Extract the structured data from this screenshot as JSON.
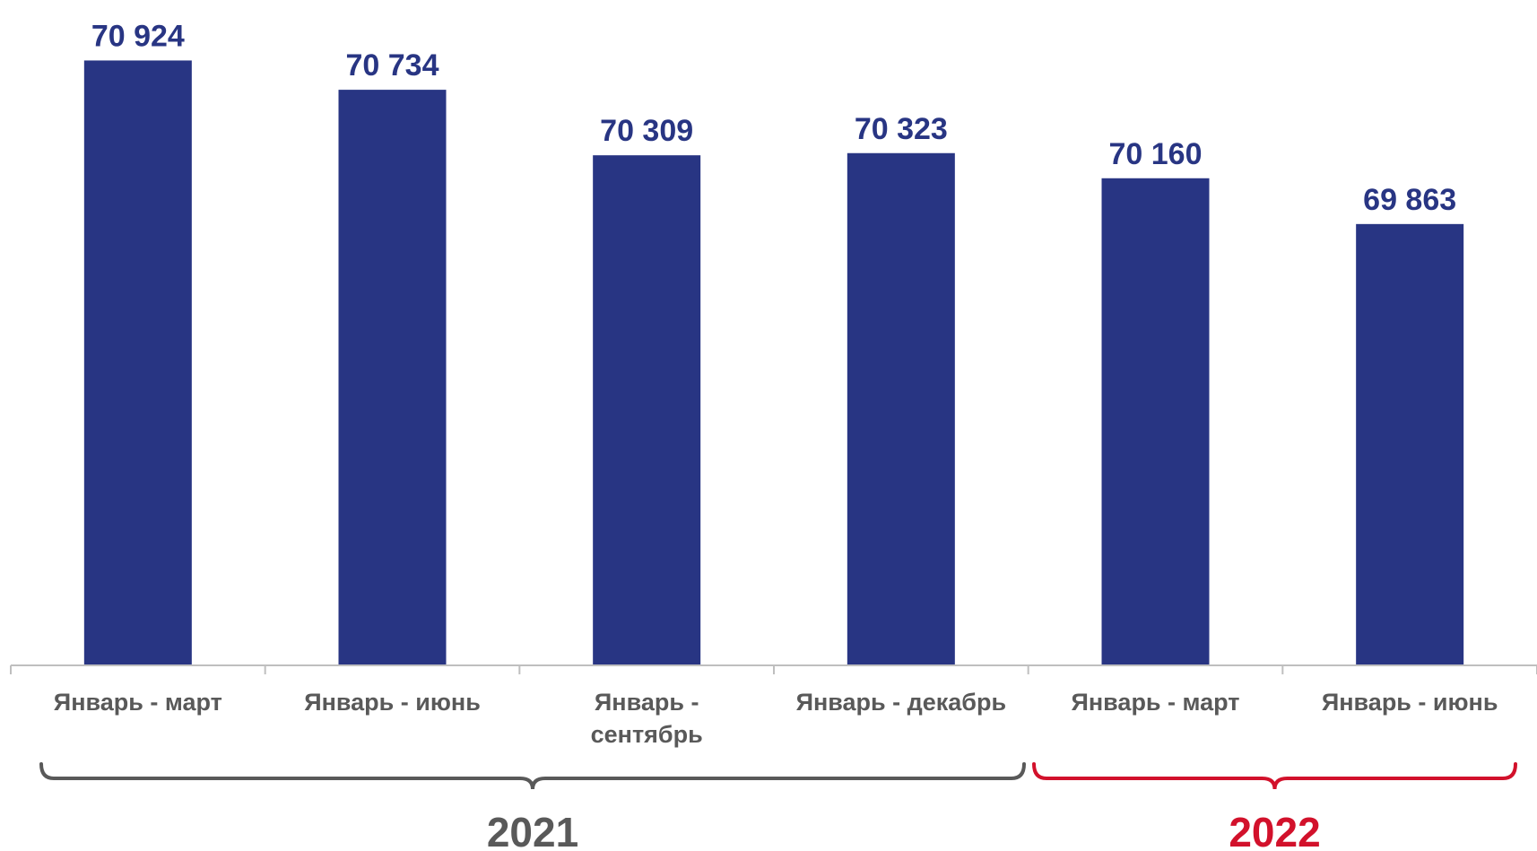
{
  "chart_data": {
    "type": "bar",
    "categories": [
      [
        "Январь - март"
      ],
      [
        "Январь - июнь"
      ],
      [
        "Январь -",
        "сентябрь"
      ],
      [
        "Январь - декабрь"
      ],
      [
        "Январь - март"
      ],
      [
        "Январь - июнь"
      ]
    ],
    "values": [
      70924,
      70734,
      70309,
      70323,
      70160,
      69863
    ],
    "value_labels": [
      "70 924",
      "70 734",
      "70 309",
      "70 323",
      "70 160",
      "69 863"
    ],
    "ylim": [
      67000,
      71200
    ],
    "grid": false,
    "legend": "none",
    "groups": [
      {
        "label": "2021",
        "from": 0,
        "to": 3,
        "color": "#595959"
      },
      {
        "label": "2022",
        "from": 4,
        "to": 5,
        "color": "#d2112b"
      }
    ],
    "colors": {
      "bar": "#283583",
      "value_label": "#283583",
      "category_label": "#595959",
      "axis": "#bfbfbf"
    }
  }
}
